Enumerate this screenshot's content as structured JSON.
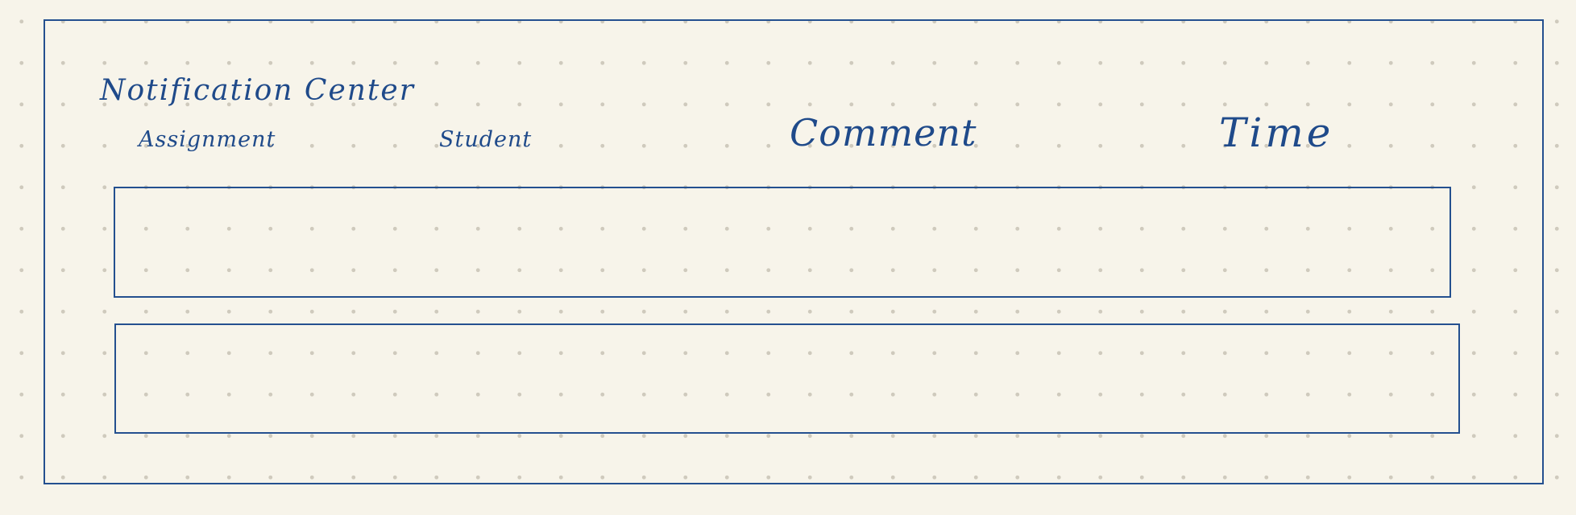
{
  "notification_center": {
    "title": "Notification Center",
    "columns": [
      {
        "label": "Assignment"
      },
      {
        "label": "Student"
      },
      {
        "label": "Comment"
      },
      {
        "label": "Time"
      }
    ],
    "rows": [
      {
        "assignment": "",
        "student": "",
        "comment": "",
        "time": ""
      },
      {
        "assignment": "",
        "student": "",
        "comment": "",
        "time": ""
      }
    ]
  },
  "colors": {
    "ink": "#24508f",
    "paper": "#f7f4ea",
    "grid_dots": "#cfcabd"
  }
}
